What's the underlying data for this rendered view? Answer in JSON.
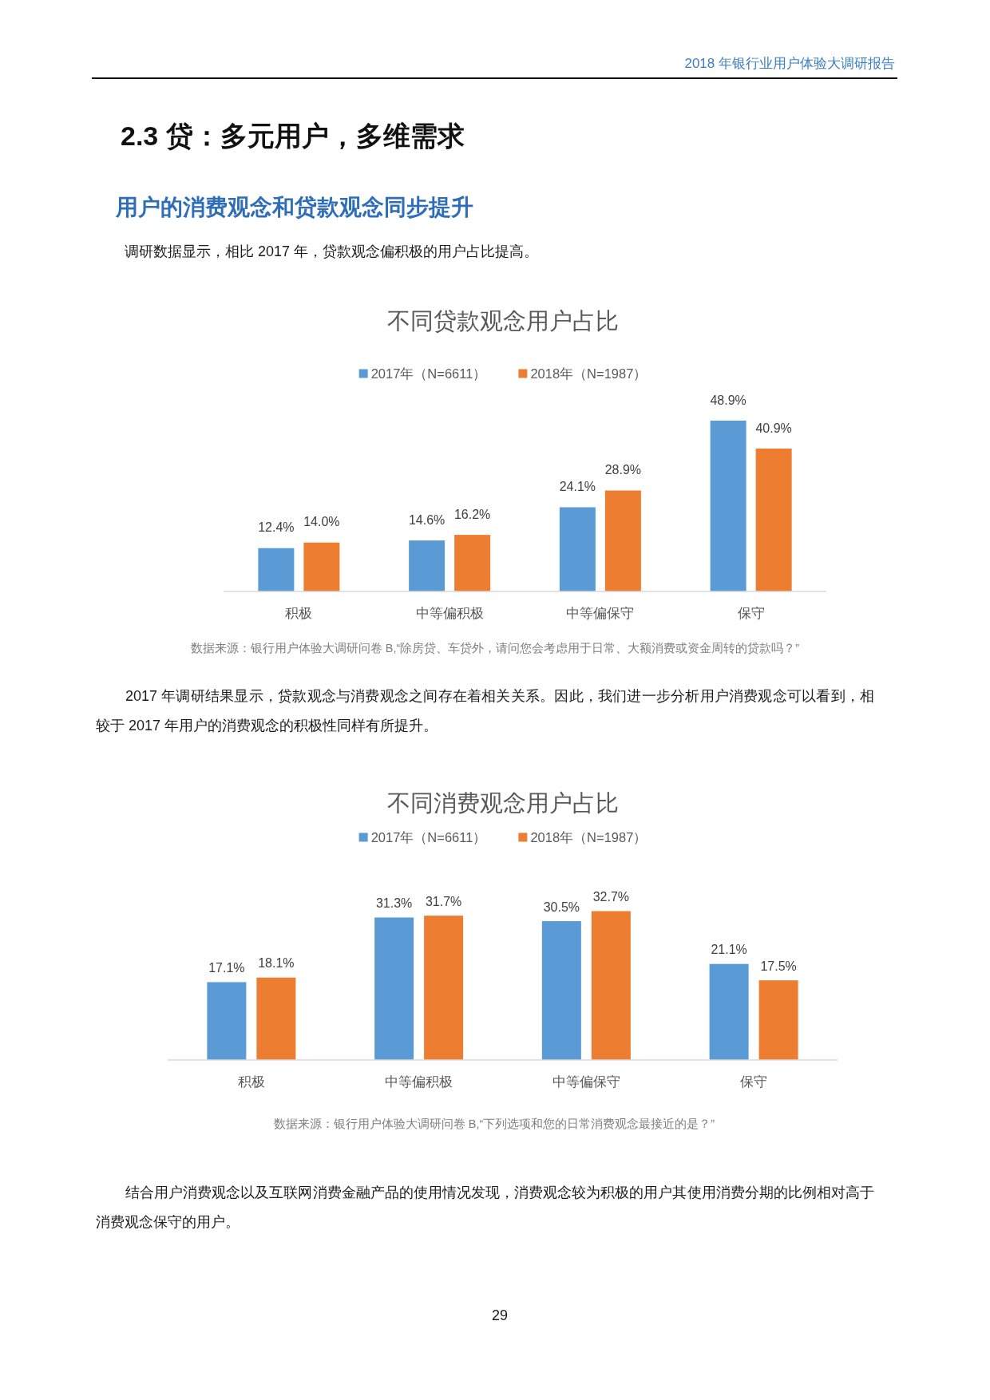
{
  "chart_data": [
    {
      "type": "bar",
      "title": "不同贷款观念用户占比",
      "categories": [
        "积极",
        "中等偏积极",
        "中等偏保守",
        "保守"
      ],
      "series": [
        {
          "name": "2017年（N=6611）",
          "color": "#5b9bd5",
          "values": [
            12.4,
            14.6,
            24.1,
            48.9
          ],
          "value_labels": [
            "12.4%",
            "14.6%",
            "24.1%",
            "48.9%"
          ]
        },
        {
          "name": "2018年（N=1987）",
          "color": "#ed7d31",
          "values": [
            14.0,
            16.2,
            28.9,
            40.9
          ],
          "value_labels": [
            "14.0%",
            "16.2%",
            "28.9%",
            "40.9%"
          ]
        }
      ],
      "legend": "top",
      "annotations": [
        "2018 年银行业用户体验大调研报告",
        "2.3 贷：多元用户，多维需求",
        "用户的消费观念和贷款观念同步提升",
        "调研数据显示，相比 2017 年，贷款观念偏积极的用户占比提高。",
        "数据来源：银行用户体验大调研问卷 B,“除房贷、车贷外，请问您会考虑用于日常、大额消费或资金周转的贷款吗？”"
      ]
    },
    {
      "type": "bar",
      "title": "不同消费观念用户占比",
      "categories": [
        "积极",
        "中等偏积极",
        "中等偏保守",
        "保守"
      ],
      "series": [
        {
          "name": "2017年（N=6611）",
          "color": "#5b9bd5",
          "values": [
            17.1,
            31.3,
            30.5,
            21.1
          ],
          "value_labels": [
            "17.1%",
            "31.3%",
            "30.5%",
            "21.1%"
          ]
        },
        {
          "name": "2018年（N=1987）",
          "color": "#ed7d31",
          "values": [
            18.1,
            31.7,
            32.7,
            17.5
          ],
          "value_labels": [
            "18.1%",
            "31.7%",
            "32.7%",
            "17.5%"
          ]
        }
      ],
      "legend": "top",
      "annotations": [
        "2017 年调研结果显示，贷款观念与消费观念之间存在着相关关系。因此，我们进一步分析用户消费观念可以看到，相较于 2017 年用户的消费观念的积极性同样有所提升。",
        "数据来源：银行用户体验大调研问卷 B,“下列选项和您的日常消费观念最接近的是？”",
        "结合用户消费观念以及互联网消费金融产品的使用情况发现，消费观念较为积极的用户其使用消费分期的比例相对高于消费观念保守的用户。",
        "29"
      ]
    }
  ]
}
